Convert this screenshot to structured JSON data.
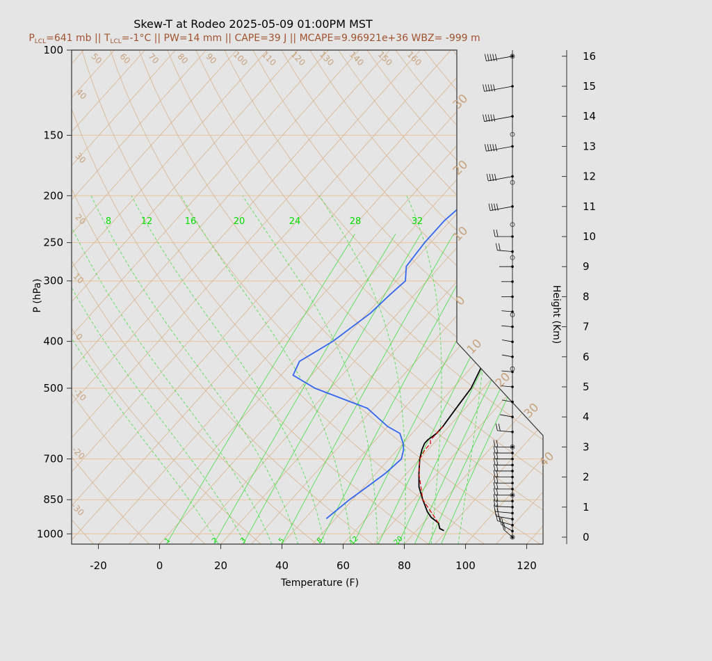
{
  "chart_data": {
    "type": "line",
    "title": "Skew-T at Rodeo 2025-05-09 01:00PM MST",
    "subtitle": {
      "p_lcl": "641 mb",
      "t_lcl": "-1°C",
      "pw": "14 mm",
      "cape": "39 J",
      "mcape": "9.96921e+36",
      "wbz": "-999 m"
    },
    "xlabel": "Temperature (F)",
    "ylabel": "P (hPa)",
    "y2label": "Height (Km)",
    "xlim": [
      -28,
      125
    ],
    "ylim": [
      1050,
      100
    ],
    "x_ticks": [
      -20,
      0,
      20,
      40,
      60,
      80,
      100,
      120
    ],
    "p_ticks": [
      100,
      150,
      200,
      250,
      300,
      400,
      500,
      700,
      850,
      1000
    ],
    "height_ticks": [
      0,
      1,
      2,
      3,
      4,
      5,
      6,
      7,
      8,
      9,
      10,
      11,
      12,
      13,
      14,
      15,
      16
    ],
    "isotherm_labels": [
      -30,
      -20,
      -10,
      0,
      10,
      20,
      30,
      40,
      50,
      60,
      70,
      80,
      90,
      100,
      110,
      120,
      130,
      140,
      150,
      160
    ],
    "mixing_ratio_labels_top": [
      "8",
      "12",
      "16",
      "20",
      "24",
      "28",
      "32"
    ],
    "mixing_ratio_labels_bottom": [
      "1",
      "2",
      "3",
      "5",
      "8",
      "12",
      "20"
    ],
    "series": [
      {
        "name": "Temperature",
        "color": "#000000",
        "p": [
          985,
          975,
          950,
          925,
          900,
          850,
          800,
          750,
          700,
          670,
          650,
          640,
          620,
          600,
          550,
          500,
          450,
          400,
          350,
          300,
          275,
          250,
          225,
          200,
          175,
          150,
          125,
          110,
          100
        ],
        "t": [
          89,
          87,
          85,
          81,
          78,
          73,
          68,
          64,
          60,
          58,
          57,
          57,
          58,
          58,
          57,
          56,
          53,
          48,
          40,
          31,
          28,
          28,
          29,
          30,
          34,
          37,
          40,
          43,
          46
        ]
      },
      {
        "name": "Dewpoint",
        "color": "#3366ee",
        "p": [
          930,
          850,
          800,
          750,
          700,
          670,
          650,
          620,
          600,
          550,
          500,
          470,
          440,
          400,
          350,
          320,
          300,
          280,
          250,
          225,
          200,
          175,
          150,
          125,
          110,
          100
        ],
        "t": [
          47,
          49,
          51,
          53,
          54,
          52,
          50,
          46,
          40,
          28,
          5,
          -6,
          -8,
          -3,
          1,
          2,
          3,
          -1,
          -2,
          -2,
          0,
          -1,
          0,
          7,
          19,
          28
        ]
      },
      {
        "name": "Parcel",
        "color": "#dd0000",
        "p": [
          950,
          850,
          750,
          700,
          670,
          650,
          641,
          600
        ],
        "t": [
          85,
          73,
          64,
          60,
          59,
          59,
          58,
          58
        ]
      }
    ],
    "wind_profile": {
      "heights_km": [
        0.0,
        0.2,
        0.4,
        0.6,
        0.8,
        1.0,
        1.2,
        1.4,
        1.6,
        1.8,
        2.0,
        2.2,
        2.4,
        2.6,
        2.8,
        3.0,
        3.5,
        4.0,
        4.5,
        5.0,
        5.5,
        6.0,
        6.5,
        7.0,
        7.5,
        8.0,
        8.5,
        9.0,
        9.5,
        10.0,
        11.0,
        12.0,
        13.0,
        14.0,
        15.0,
        16.0
      ],
      "arrow_dir_deg": [
        330,
        320,
        300,
        290,
        280,
        275,
        270,
        270,
        270,
        270,
        270,
        270,
        270,
        270,
        270,
        270,
        280,
        290,
        290,
        280,
        280,
        290,
        290,
        280,
        280,
        270,
        270,
        270,
        280,
        270,
        250,
        250,
        250,
        250,
        250,
        250
      ],
      "speed_kt": [
        25,
        25,
        25,
        25,
        25,
        25,
        25,
        25,
        25,
        25,
        25,
        25,
        25,
        25,
        25,
        25,
        20,
        15,
        10,
        10,
        10,
        10,
        10,
        10,
        10,
        10,
        10,
        15,
        20,
        25,
        40,
        45,
        50,
        55,
        55,
        50
      ]
    },
    "grid": true
  },
  "colors": {
    "background": "#e5e5e5",
    "plot_border": "#333333",
    "isotherm": "#d9b48f",
    "isobar": "#e8c39c",
    "mixing_ratio": "#44dd44",
    "temperature": "#000000",
    "dewpoint": "#3366ee",
    "parcel": "#dd0000",
    "subtitle": "#a0522d"
  }
}
